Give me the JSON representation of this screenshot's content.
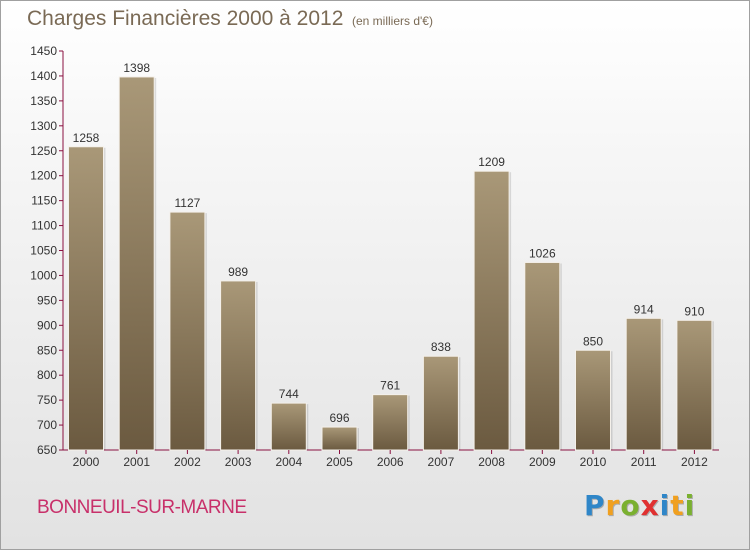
{
  "title": "Charges Financières 2000 à 2012",
  "subtitle": "(en milliers d'€)",
  "location": "BONNEUIL-SUR-MARNE",
  "brand": {
    "letters": [
      "P",
      "r",
      "o",
      "x",
      "i",
      "t",
      "i"
    ],
    "colors": [
      "#2f86c8",
      "#f0a020",
      "#7ab030",
      "#e03030",
      "#2f86c8",
      "#f0a020",
      "#7ab030"
    ]
  },
  "colors": {
    "bar_top": "#a99878",
    "bar_bottom": "#6b5a40",
    "text": "#7a6a55",
    "location": "#c8306a"
  },
  "chart_data": {
    "type": "bar",
    "title": "Charges Financières 2000 à 2012",
    "subtitle": "(en milliers d'€)",
    "xlabel": "",
    "ylabel": "",
    "ylim": [
      650,
      1450
    ],
    "ytick_step": 50,
    "grid": false,
    "categories": [
      "2000",
      "2001",
      "2002",
      "2003",
      "2004",
      "2005",
      "2006",
      "2007",
      "2008",
      "2009",
      "2010",
      "2011",
      "2012"
    ],
    "values": [
      1258,
      1398,
      1127,
      989,
      744,
      696,
      761,
      838,
      1209,
      1026,
      850,
      914,
      910
    ]
  }
}
